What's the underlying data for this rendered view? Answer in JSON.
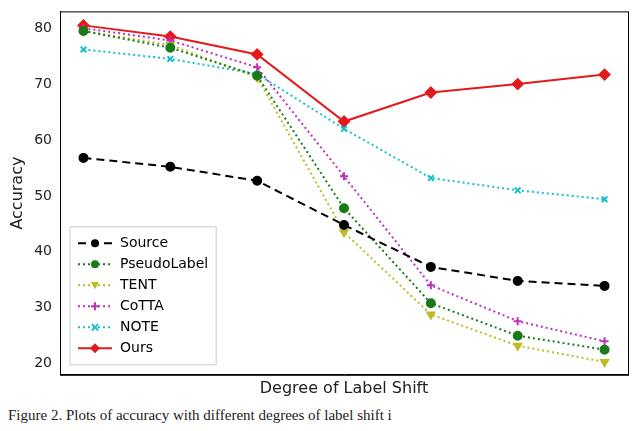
{
  "chart_data": {
    "type": "line",
    "x_label": "Degree of Label Shift",
    "y_label": "Accuracy",
    "caption": "Figure 2. Plots of accuracy with different degrees of label shift i",
    "categories": [
      null,
      null,
      null,
      null,
      null,
      null,
      null
    ],
    "series": [
      {
        "name": "Source",
        "color": "#000000",
        "marker": "circle",
        "line_style": "dashed",
        "values": [
          56.8,
          55.2,
          52.7,
          44.8,
          37.3,
          34.8,
          33.9
        ]
      },
      {
        "name": "PseudoLabel",
        "color": "#1a7a1a",
        "marker": "circle",
        "line_style": "dotted",
        "values": [
          79.5,
          76.5,
          71.5,
          47.8,
          30.8,
          25.0,
          22.5
        ]
      },
      {
        "name": "TENT",
        "color": "#bcbd22",
        "marker": "triangle_down",
        "line_style": "dotted",
        "values": [
          79.5,
          77.0,
          71.2,
          43.5,
          28.8,
          23.2,
          20.3
        ]
      },
      {
        "name": "CoTTA",
        "color": "#c030c0",
        "marker": "plus",
        "line_style": "dotted",
        "values": [
          80.0,
          77.8,
          73.0,
          53.5,
          34.0,
          27.6,
          24.0
        ]
      },
      {
        "name": "NOTE",
        "color": "#17becf",
        "marker": "x",
        "line_style": "dotted",
        "values": [
          76.2,
          74.5,
          71.8,
          62.0,
          53.2,
          51.0,
          49.4
        ]
      },
      {
        "name": "Ours",
        "color": "#e31a1c",
        "marker": "diamond",
        "line_style": "solid",
        "values": [
          80.5,
          78.5,
          75.3,
          63.3,
          68.5,
          70.0,
          71.7
        ]
      }
    ],
    "ylim": [
      18,
      83
    ],
    "yticks": [
      20,
      30,
      40,
      50,
      60,
      70,
      80
    ],
    "grid": false,
    "legend": "lower left",
    "tick_labels": "y"
  }
}
